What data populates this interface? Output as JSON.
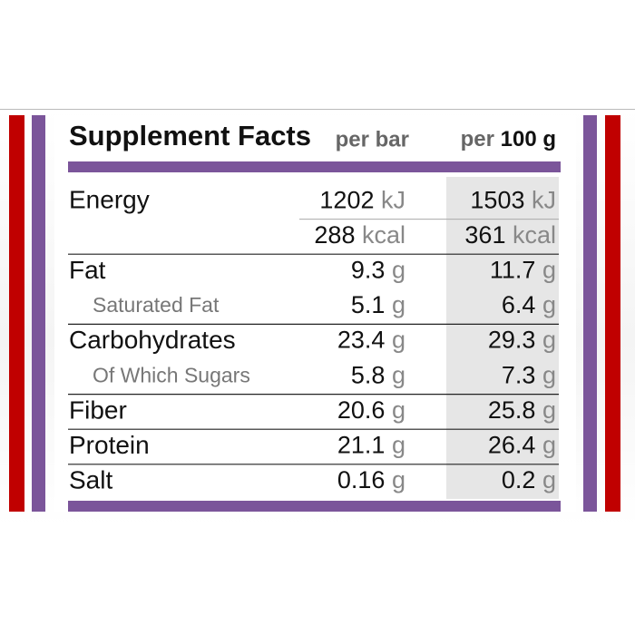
{
  "header": {
    "title": "Supplement Facts",
    "col1": "per bar",
    "col2_prefix": "per",
    "col2_amount": "100 g"
  },
  "table": {
    "rows": [
      {
        "label": "Energy",
        "sub": false,
        "v1": "1202",
        "u1": "kJ",
        "v2": "1503",
        "u2": "kJ"
      },
      {
        "label": null,
        "sub": false,
        "v1": "288",
        "u1": "kcal",
        "v2": "361",
        "u2": "kcal"
      },
      {
        "label": "Fat",
        "sub": false,
        "v1": "9.3",
        "u1": "g",
        "v2": "11.7",
        "u2": "g"
      },
      {
        "label": "Saturated Fat",
        "sub": true,
        "v1": "5.1",
        "u1": "g",
        "v2": "6.4",
        "u2": "g"
      },
      {
        "label": "Carbohydrates",
        "sub": false,
        "v1": "23.4",
        "u1": "g",
        "v2": "29.3",
        "u2": "g"
      },
      {
        "label": "Of Which Sugars",
        "sub": true,
        "v1": "5.8",
        "u1": "g",
        "v2": "7.3",
        "u2": "g"
      },
      {
        "label": "Fiber",
        "sub": false,
        "v1": "20.6",
        "u1": "g",
        "v2": "25.8",
        "u2": "g"
      },
      {
        "label": "Protein",
        "sub": false,
        "v1": "21.1",
        "u1": "g",
        "v2": "26.4",
        "u2": "g"
      },
      {
        "label": "Salt",
        "sub": false,
        "v1": "0.16",
        "u1": "g",
        "v2": "0.2",
        "u2": "g"
      }
    ]
  }
}
